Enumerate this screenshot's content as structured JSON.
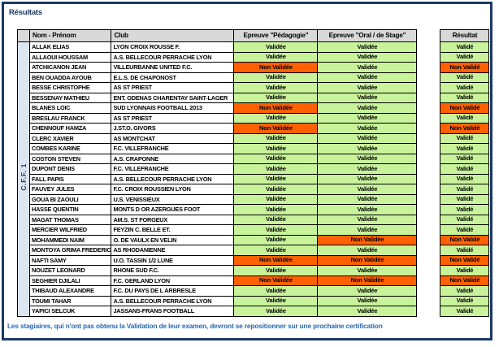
{
  "title": "Résultats",
  "group_label": "C.F.F. 1",
  "footer_note": "Les stagiaires, qui n'ont pas obtenu la Validation de leur examen, devront se repositionner sur une prochaine certification",
  "colors": {
    "frame_border": "#1b3a66",
    "title_text": "#16365c",
    "header_bg": "#d9d9d9",
    "group_bg": "#dce6f1",
    "valid_bg": "#c9f39b",
    "invalid_bg": "#ff6100",
    "note_text": "#2768b5"
  },
  "table": {
    "headers": [
      "Nom - Prénom",
      "Club",
      "Epreuve \"Pédagogie\"",
      "Epreuve \"Oral / de Stage\"",
      "Résultat"
    ],
    "rows": [
      {
        "name": "ALLAK ELIAS",
        "club": "LYON CROIX ROUSSE F.",
        "pedagogie": "Validée",
        "oral": "Validée",
        "resultat": "Validé"
      },
      {
        "name": "ALLAOUI HOUSSAM",
        "club": "A.S. BELLECOUR PERRACHE LYON",
        "pedagogie": "Validée",
        "oral": "Validée",
        "resultat": "Validé"
      },
      {
        "name": "ATCHICANON JEAN",
        "club": "VILLEURBANNE UNITED F.C.",
        "pedagogie": "Non Validée",
        "oral": "Validée",
        "resultat": "Non Validé"
      },
      {
        "name": "BEN OUADDA AYOUB",
        "club": "E.L.S. DE CHAPONOST",
        "pedagogie": "Validée",
        "oral": "Validée",
        "resultat": "Validé"
      },
      {
        "name": "BESSE CHRISTOPHE",
        "club": "AS ST PRIEST",
        "pedagogie": "Validée",
        "oral": "Validée",
        "resultat": "Validé"
      },
      {
        "name": "BESSENAY MATHIEU",
        "club": "ENT. ODENAS CHARENTAY SAINT-LAGER",
        "pedagogie": "Validée",
        "oral": "Validée",
        "resultat": "Validé"
      },
      {
        "name": "BLANES LOIC",
        "club": "SUD LYONNAIS FOOTBALL 2013",
        "pedagogie": "Non Validée",
        "oral": "Validée",
        "resultat": "Non Validé"
      },
      {
        "name": "BRESLAU FRANCK",
        "club": "AS ST PRIEST",
        "pedagogie": "Validée",
        "oral": "Validée",
        "resultat": "Validé"
      },
      {
        "name": "CHENNOUF HAMZA",
        "club": "J.ST.O. GIVORS",
        "pedagogie": "Non Validée",
        "oral": "Validée",
        "resultat": "Non Validé"
      },
      {
        "name": "CLERC XAVIER",
        "club": "AS MONTCHAT",
        "pedagogie": "Validée",
        "oral": "Validée",
        "resultat": "Validé"
      },
      {
        "name": "COMBES KARINE",
        "club": "F.C. VILLEFRANCHE",
        "pedagogie": "Validée",
        "oral": "Validée",
        "resultat": "Validé"
      },
      {
        "name": "COSTON STEVEN",
        "club": "A.S. CRAPONNE",
        "pedagogie": "Validée",
        "oral": "Validée",
        "resultat": "Validé"
      },
      {
        "name": "DUPONT DENIS",
        "club": "F.C. VILLEFRANCHE",
        "pedagogie": "Validée",
        "oral": "Validée",
        "resultat": "Validé"
      },
      {
        "name": "FALL PAPIS",
        "club": "A.S. BELLECOUR PERRACHE LYON",
        "pedagogie": "Validée",
        "oral": "Validée",
        "resultat": "Validé"
      },
      {
        "name": "FAUVEY JULES",
        "club": "F.C. CROIX ROUSSIEN LYON",
        "pedagogie": "Validée",
        "oral": "Validée",
        "resultat": "Validé"
      },
      {
        "name": "GOUA BI ZAOULI",
        "club": "U.S. VENISSIEUX",
        "pedagogie": "Validée",
        "oral": "Validée",
        "resultat": "Validé"
      },
      {
        "name": "HASSE QUENTIN",
        "club": "MONTS D OR AZERGUES FOOT",
        "pedagogie": "Validée",
        "oral": "Validée",
        "resultat": "Validé"
      },
      {
        "name": "MAGAT THOMAS",
        "club": "AM.S. ST FORGEUX",
        "pedagogie": "Validée",
        "oral": "Validée",
        "resultat": "Validé"
      },
      {
        "name": "MERCIER WILFRIED",
        "club": "FEYZIN C. BELLE ET.",
        "pedagogie": "Validée",
        "oral": "Validée",
        "resultat": "Validé"
      },
      {
        "name": "MOHAMMEDI NAIM",
        "club": "O. DE VAULX EN VELIN",
        "pedagogie": "Validée",
        "oral": "Non Validée",
        "resultat": "Non Validé"
      },
      {
        "name": "MONTOYA GRIMA FREDERIC",
        "club": "AS RHODANIENNE",
        "pedagogie": "Validée",
        "oral": "Validée",
        "resultat": "Validé"
      },
      {
        "name": "NAFTI SAMY",
        "club": "U.O. TASSIN 1/2 LUNE",
        "pedagogie": "Non Validée",
        "oral": "Non Validée",
        "resultat": "Non Validé"
      },
      {
        "name": "NOUZET LEONARD",
        "club": "RHONE SUD F.C.",
        "pedagogie": "Validée",
        "oral": "Validée",
        "resultat": "Validé"
      },
      {
        "name": "SEGHIER DJILALI",
        "club": "F.C. GERLAND LYON",
        "pedagogie": "Non Validée",
        "oral": "Non Validée",
        "resultat": "Non Validé"
      },
      {
        "name": "THIBAUD ALEXANDRE",
        "club": "F.C. DU PAYS DE L ARBRESLE",
        "pedagogie": "Validée",
        "oral": "Validée",
        "resultat": "Validé"
      },
      {
        "name": "TOUMI TAHAR",
        "club": "A.S. BELLECOUR PERRACHE LYON",
        "pedagogie": "Validée",
        "oral": "Validée",
        "resultat": "Validé"
      },
      {
        "name": "YAPICI SELCUK",
        "club": "JASSANS-FRANS FOOTBALL",
        "pedagogie": "Validée",
        "oral": "Validée",
        "resultat": "Validé"
      }
    ]
  }
}
